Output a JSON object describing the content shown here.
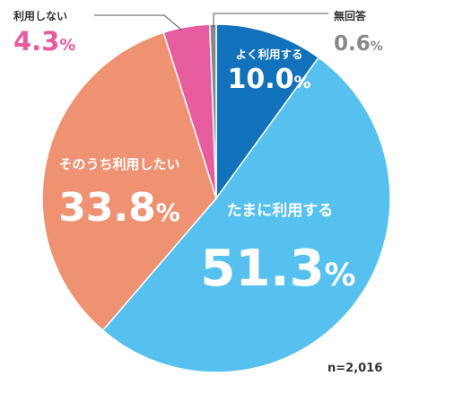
{
  "chart_data": {
    "type": "pie",
    "title": "",
    "n_label": "n=2,016",
    "slices": [
      {
        "label": "よく利用する",
        "value": 10.0,
        "value_text": "10.0",
        "color": "#1171bb"
      },
      {
        "label": "たまに利用する",
        "value": 51.3,
        "value_text": "51.3",
        "color": "#56c1ef"
      },
      {
        "label": "そのうち利用したい",
        "value": 33.8,
        "value_text": "33.8",
        "color": "#ee9272"
      },
      {
        "label": "利用しない",
        "value": 4.3,
        "value_text": "4.3",
        "color": "#e65c9f"
      },
      {
        "label": "無回答",
        "value": 0.6,
        "value_text": "0.6",
        "color": "#888888"
      }
    ],
    "percent_sign": "%",
    "start_angle_deg": 0,
    "direction": "clockwise"
  }
}
